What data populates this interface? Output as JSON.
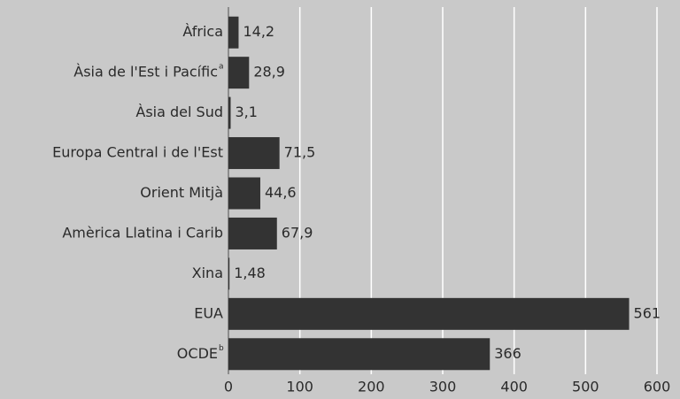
{
  "chart_data": {
    "type": "hbar",
    "categories": [
      "Àfrica",
      "Àsia de l'Est i Pacífic",
      "Àsia del Sud",
      "Europa Central i de l'Est",
      "Orient Mitjà",
      "Amèrica Llatina i Carib",
      "Xina",
      "EUA",
      "OCDE"
    ],
    "category_notes": [
      null,
      "a",
      null,
      null,
      null,
      null,
      null,
      null,
      "b"
    ],
    "values": [
      14.2,
      28.9,
      3.1,
      71.5,
      44.6,
      67.9,
      1.48,
      561,
      366
    ],
    "value_labels": [
      "14,2",
      "28,9",
      "3,1",
      "71,5",
      "44,6",
      "67,9",
      "1,48",
      "561",
      "366"
    ],
    "color": "#333333",
    "xlim": [
      0,
      600
    ],
    "xticks": [
      0,
      100,
      200,
      300,
      400,
      500,
      600
    ],
    "grid": true
  }
}
